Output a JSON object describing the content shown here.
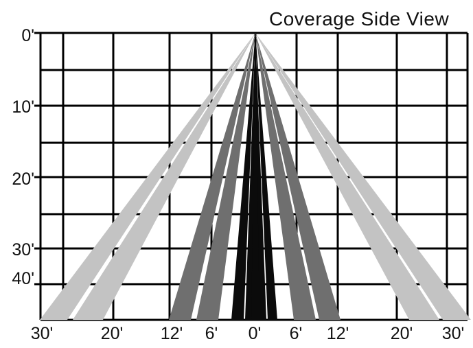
{
  "title": "Coverage Side View",
  "y_labels": [
    "0'",
    "10'",
    "20'",
    "30'",
    "40'"
  ],
  "x_labels": [
    "30'",
    "20'",
    "12'",
    "6'",
    "0'",
    "6'",
    "12'",
    "20'",
    "30'"
  ],
  "colors": {
    "grid": "#000000",
    "outer_beam": "#c3c3c3",
    "middle_beam": "#6f6f6f",
    "inner_beam": "#0b0b0b",
    "background": "#ffffff"
  },
  "beams": [
    {
      "name": "outer-left-beam-1",
      "tier": "outer"
    },
    {
      "name": "outer-left-beam-2",
      "tier": "outer"
    },
    {
      "name": "outer-right-beam-1",
      "tier": "outer"
    },
    {
      "name": "outer-right-beam-2",
      "tier": "outer"
    },
    {
      "name": "middle-left-beam-1",
      "tier": "middle"
    },
    {
      "name": "middle-left-beam-2",
      "tier": "middle"
    },
    {
      "name": "middle-right-beam-1",
      "tier": "middle"
    },
    {
      "name": "middle-right-beam-2",
      "tier": "middle"
    },
    {
      "name": "inner-beam-1",
      "tier": "inner"
    },
    {
      "name": "inner-beam-2",
      "tier": "inner"
    },
    {
      "name": "inner-beam-3",
      "tier": "inner"
    },
    {
      "name": "inner-beam-4",
      "tier": "inner"
    }
  ]
}
